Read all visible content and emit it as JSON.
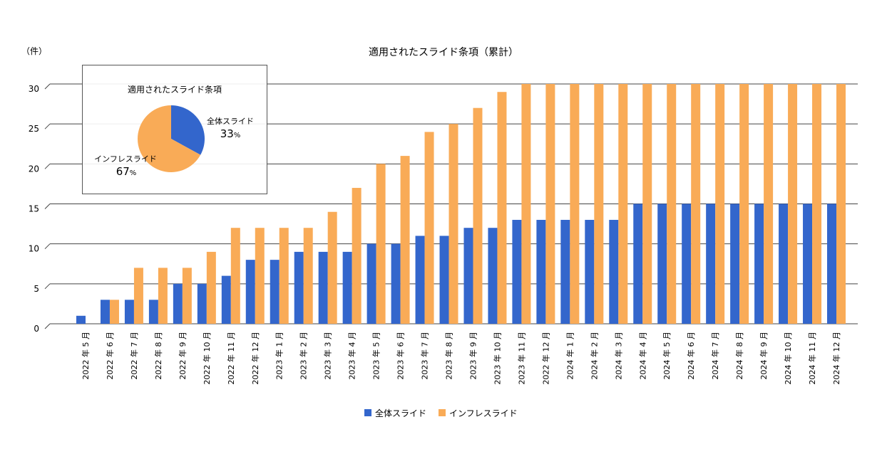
{
  "chart_data": {
    "type": "bar",
    "title": "適用されたスライド条項（累計）",
    "ylabel": "（件）",
    "xlabel": "",
    "ylim": [
      0,
      30
    ],
    "yticks": [
      0,
      5,
      10,
      15,
      20,
      25,
      30
    ],
    "grid": true,
    "legend_position": "bottom",
    "categories": [
      "2022 年 5 月",
      "2022 年 6 月",
      "2022 年 7 月",
      "2022 年 8 月",
      "2022 年 9 月",
      "2022 年 10 月",
      "2022 年 11 月",
      "2022 年 12 月",
      "2023 年 1 月",
      "2023 年 2 月",
      "2023 年 3 月",
      "2023 年 4 月",
      "2023 年 5 月",
      "2023 年 6 月",
      "2023 年 7 月",
      "2023 年 8 月",
      "2023 年 9 月",
      "2023 年 10 月",
      "2023 年 11 月",
      "2022 年 12 月",
      "2024 年 1 月",
      "2024 年 2 月",
      "2024 年 3 月",
      "2024 年 4 月",
      "2024 年 5 月",
      "2024 年 6 月",
      "2024 年 7 月",
      "2024 年 8 月",
      "2024 年 9 月",
      "2024 年 10 月",
      "2024 年 11 月",
      "2024 年 12 月"
    ],
    "series": [
      {
        "name": "全体スライド",
        "color": "#3366cc",
        "values": [
          1,
          3,
          3,
          3,
          5,
          5,
          6,
          8,
          8,
          9,
          9,
          9,
          10,
          10,
          11,
          11,
          12,
          12,
          13,
          13,
          13,
          13,
          13,
          15,
          15,
          15,
          15,
          15,
          15,
          15,
          15,
          15
        ]
      },
      {
        "name": "インフレスライド",
        "color": "#f9ab57",
        "values": [
          0,
          3,
          7,
          7,
          7,
          9,
          12,
          12,
          12,
          12,
          14,
          17,
          20,
          21,
          24,
          25,
          27,
          29,
          30,
          30,
          30,
          30,
          30,
          30,
          30,
          30,
          30,
          30,
          30,
          30,
          30,
          30
        ]
      }
    ],
    "inset": {
      "type": "pie",
      "title": "適用されたスライド条項",
      "slices": [
        {
          "name": "全体スライド",
          "percent": 33,
          "label_value": "33",
          "color": "#3366cc"
        },
        {
          "name": "インフレスライド",
          "percent": 67,
          "label_value": "67",
          "color": "#f9ab57"
        }
      ],
      "percent_sign": "%"
    }
  }
}
